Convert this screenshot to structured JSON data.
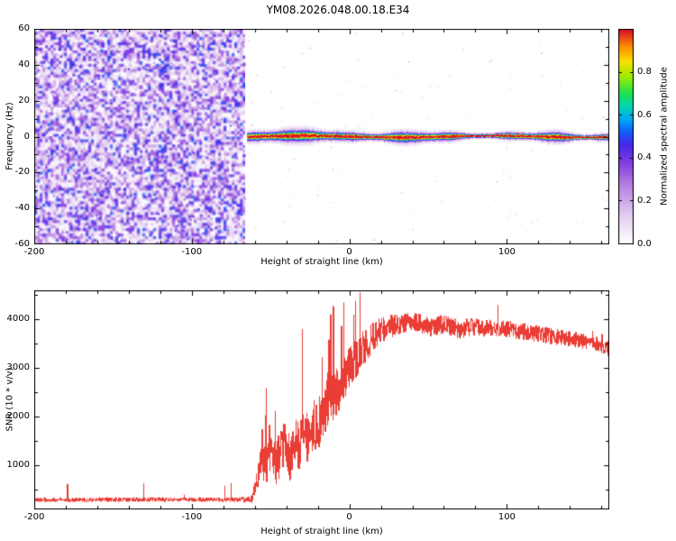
{
  "title": "YM08.2026.048.00.18.E34",
  "colors": {
    "snr_trace": "#e8332a",
    "axis": "#000000",
    "background": "#ffffff"
  },
  "chart_data": [
    {
      "type": "heatmap",
      "name": "doppler-spectrogram",
      "xlabel": "Height of straight line (km)",
      "ylabel": "Frequency (Hz)",
      "xlim": [
        -200,
        165
      ],
      "ylim": [
        -60,
        60
      ],
      "xticks": [
        -200,
        -100,
        0,
        100
      ],
      "x_minor_step": 20,
      "yticks": [
        -60,
        -40,
        -20,
        0,
        20,
        40,
        60
      ],
      "y_minor_step": 10,
      "grid": false,
      "regions": {
        "noise_field": {
          "x_range": [
            -200,
            -66
          ],
          "amplitude_range": [
            0.0,
            0.52
          ],
          "description": "dense violet speckle noise filling all frequencies, no echo"
        },
        "echo_ridge": {
          "x_range": [
            -65,
            165
          ],
          "center_frequency_hz": 0,
          "peak_amplitude": 1.0,
          "typical_half_width_hz": 2,
          "blob_half_width_hz": 4,
          "description": "continuous narrow echo at 0 Hz: red core with yellow/green/cyan/blue/violet fringe, width varying along height"
        }
      },
      "colorbar": {
        "label": "Normalized spectral amplitude",
        "range": [
          0,
          1
        ],
        "ticks": [
          0,
          0.2,
          0.4,
          0.6,
          0.8
        ],
        "tick_labels": [
          "0.0",
          "0.2",
          "0.4",
          "0.6",
          "0.8"
        ],
        "colormap_stops": [
          {
            "t": 0.0,
            "color": "#ffffff"
          },
          {
            "t": 0.05,
            "color": "#f6eefa"
          },
          {
            "t": 0.15,
            "color": "#ddc4f0"
          },
          {
            "t": 0.28,
            "color": "#b47ce2"
          },
          {
            "t": 0.38,
            "color": "#823ce1"
          },
          {
            "t": 0.46,
            "color": "#4828eb"
          },
          {
            "t": 0.52,
            "color": "#145afa"
          },
          {
            "t": 0.58,
            "color": "#00aaf5"
          },
          {
            "t": 0.64,
            "color": "#00d7b4"
          },
          {
            "t": 0.7,
            "color": "#1ee150"
          },
          {
            "t": 0.78,
            "color": "#a0eb00"
          },
          {
            "t": 0.85,
            "color": "#fae100"
          },
          {
            "t": 0.92,
            "color": "#ff8c00"
          },
          {
            "t": 1.0,
            "color": "#d70a2d"
          }
        ]
      }
    },
    {
      "type": "line",
      "name": "snr-profile",
      "xlabel": "Height of straight line (km)",
      "ylabel": "SNR (10 * v/v)",
      "xlim": [
        -200,
        165
      ],
      "ylim": [
        100,
        4600
      ],
      "xticks": [
        -200,
        -100,
        0,
        100
      ],
      "x_minor_step": 20,
      "yticks": [
        1000,
        2000,
        3000,
        4000
      ],
      "y_minor_step": 500,
      "color": "#e8332a",
      "series": [
        {
          "name": "SNR",
          "x": [
            -200,
            -150,
            -100,
            -80,
            -70,
            -65,
            -62,
            -59,
            -56,
            -53,
            -50,
            -47,
            -44,
            -41,
            -38,
            -35,
            -32,
            -29,
            -26,
            -23,
            -20,
            -17,
            -14,
            -11,
            -8,
            -5,
            -2,
            0,
            3,
            6,
            10,
            15,
            20,
            25,
            30,
            40,
            50,
            60,
            70,
            80,
            90,
            100,
            110,
            120,
            130,
            140,
            150,
            160,
            165
          ],
          "y": [
            300,
            300,
            305,
            300,
            300,
            310,
            330,
            700,
            1200,
            900,
            1400,
            1000,
            1250,
            1500,
            1150,
            1600,
            1350,
            1700,
            1500,
            1850,
            1750,
            2050,
            2200,
            2400,
            2550,
            2750,
            2900,
            3000,
            3150,
            3250,
            3450,
            3650,
            3800,
            3850,
            3900,
            3950,
            3850,
            3900,
            3800,
            3850,
            3800,
            3800,
            3750,
            3700,
            3650,
            3600,
            3550,
            3450,
            3400
          ],
          "noise_x": [
            -200,
            -70,
            -62,
            -55,
            -40,
            -20,
            -5,
            5,
            15,
            30,
            60,
            100,
            140,
            165
          ],
          "noise_amp": [
            60,
            60,
            120,
            480,
            600,
            650,
            600,
            500,
            380,
            270,
            250,
            230,
            210,
            200
          ],
          "description": "flat noise floor ~300 up to -60 km, spiky rise between -58 and +15 km, noisy plateau ~3900 from 20 to 100 km, slow decline to ~3400 at right edge"
        }
      ]
    }
  ]
}
